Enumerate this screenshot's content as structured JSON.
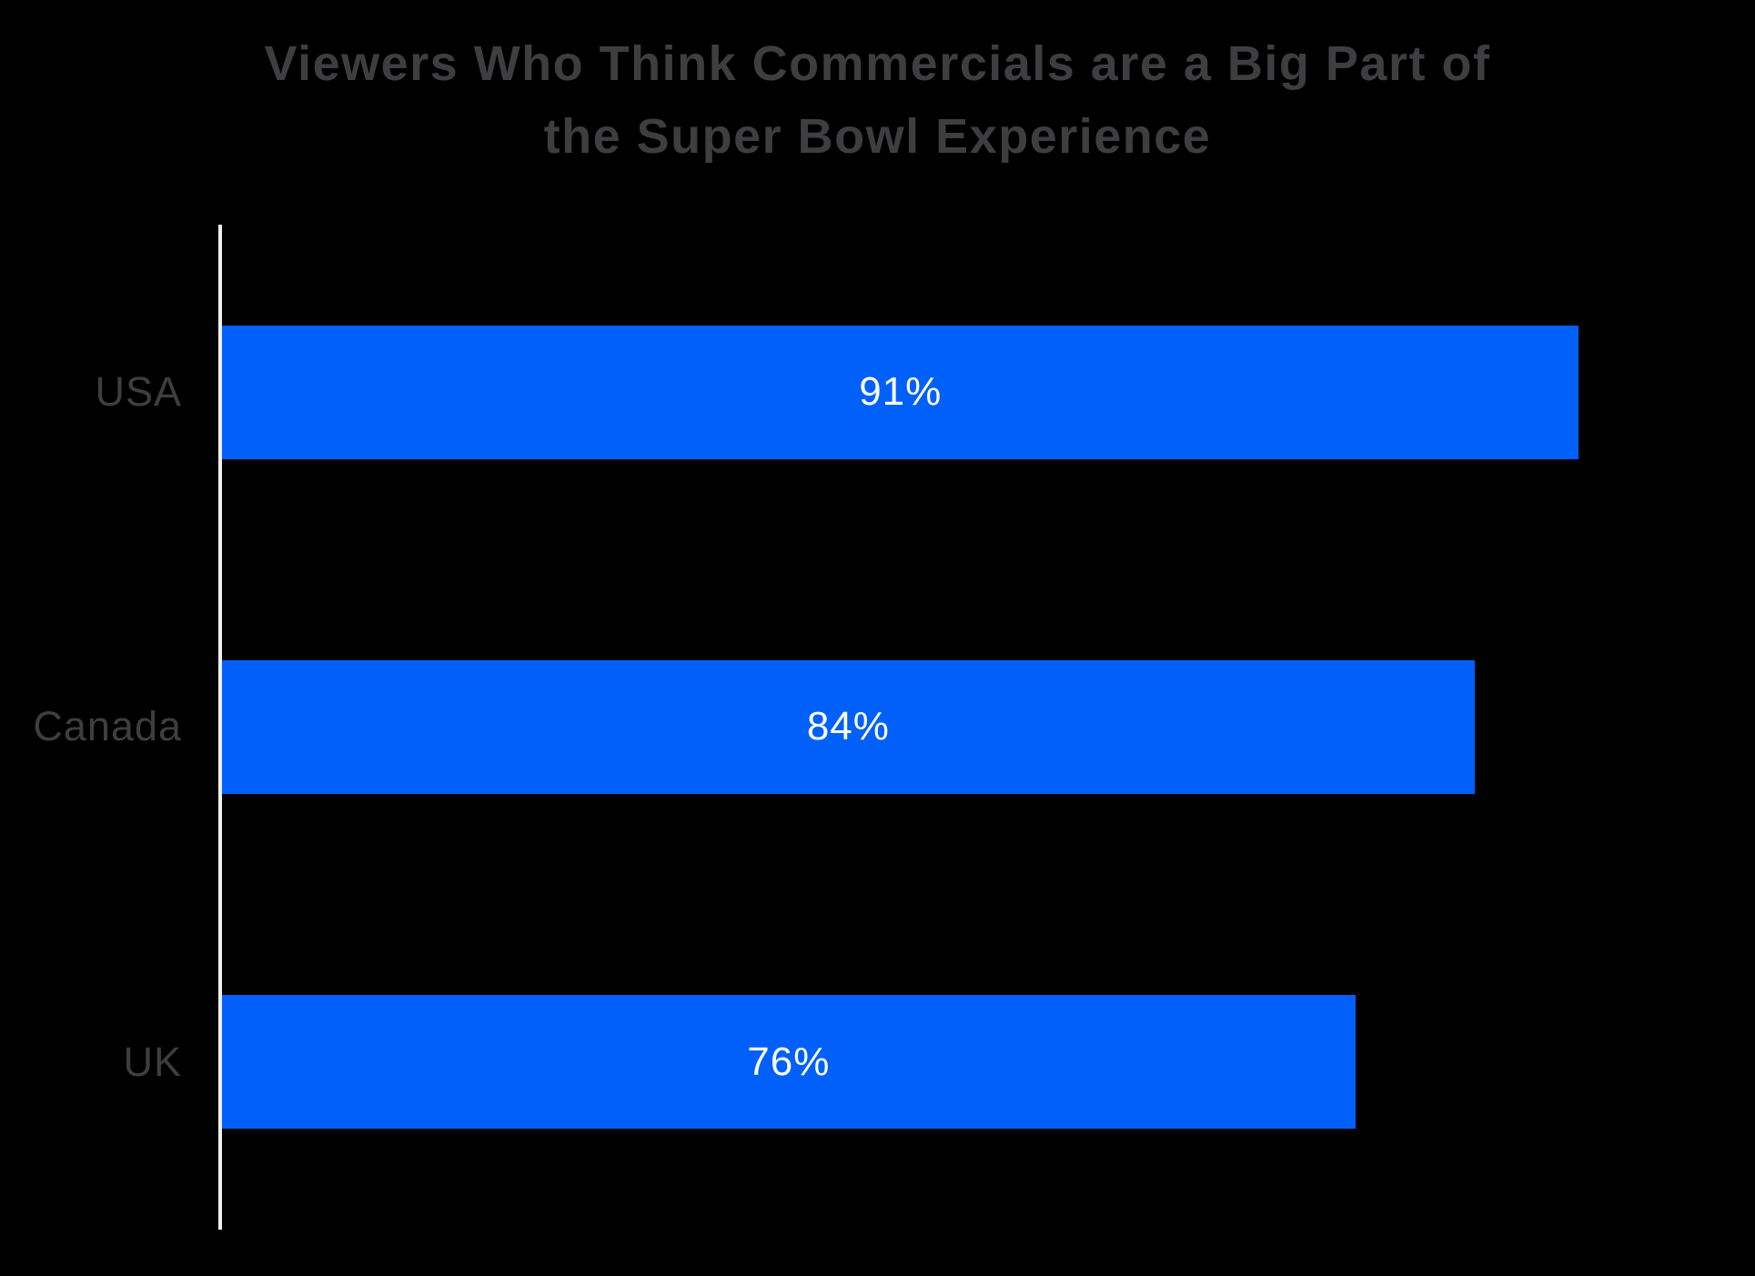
{
  "title": {
    "line1": "Viewers Who Think Commercials are a Big Part of",
    "line2": "the Super Bowl Experience"
  },
  "colors": {
    "background": "#000000",
    "bar": "#0160fa",
    "title_text": "#3e3e40",
    "category_text": "#3e3e40",
    "value_text": "#ffffff",
    "axis_line": "#f0f0f0"
  },
  "chart_data": {
    "type": "bar",
    "orientation": "horizontal",
    "title": "Viewers Who Think Commercials are a Big Part of the Super Bowl Experience",
    "categories": [
      "USA",
      "Canada",
      "UK"
    ],
    "values": [
      91,
      84,
      76
    ],
    "value_labels": [
      "91%",
      "84%",
      "76%"
    ],
    "xlabel": "",
    "ylabel": "",
    "xlim": [
      0,
      100
    ],
    "grid": false,
    "legend": false,
    "value_label_position": "center-inside"
  }
}
